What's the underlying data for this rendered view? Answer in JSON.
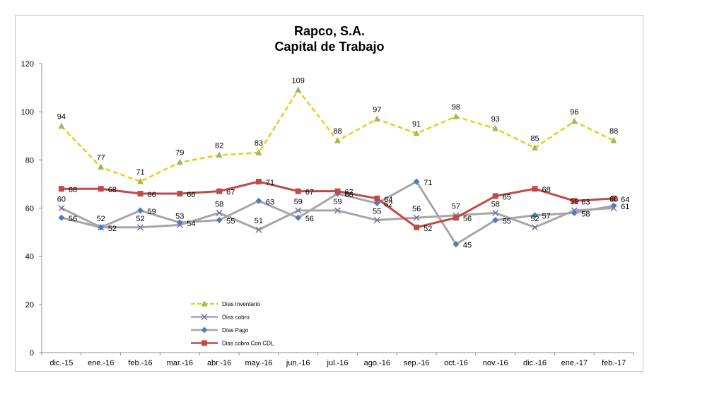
{
  "chart_data": {
    "type": "line",
    "title": [
      "Rapco, S.A.",
      "Capital de Trabajo"
    ],
    "categories": [
      "dic.-15",
      "ene.-16",
      "feb.-16",
      "mar.-16",
      "abr.-16",
      "may.-16",
      "jun.-16",
      "jul.-16",
      "ago.-16",
      "sep.-16",
      "oct.-16",
      "nov.-16",
      "dic.-16",
      "ene.-17",
      "feb.-17"
    ],
    "ylim": [
      0,
      120
    ],
    "yticks": [
      0,
      20,
      40,
      60,
      80,
      100,
      120
    ],
    "ytick_labels": [
      "0",
      "20",
      "40",
      "60",
      "80",
      "100",
      "120"
    ],
    "grid": false,
    "legend_position": "bottom-left inside plot",
    "series": [
      {
        "name": "Días Inventario",
        "color": "#f2c81e",
        "line_style": "dashed",
        "marker": "triangle",
        "marker_color": "#9bbb59",
        "values": [
          94,
          77,
          71,
          79,
          82,
          83,
          109,
          88,
          97,
          91,
          98,
          93,
          85,
          96,
          88
        ],
        "labels": [
          "94",
          "77",
          "71",
          "79",
          "82",
          "83",
          "109",
          "88",
          "97",
          "91",
          "98",
          "93",
          "85",
          "96",
          "88"
        ]
      },
      {
        "name": "Días cobro",
        "color": "#a6a6a6",
        "line_style": "solid",
        "marker": "x",
        "marker_color": "#7f6fa8",
        "values": [
          60,
          52,
          52,
          53,
          58,
          51,
          59,
          59,
          55,
          56,
          57,
          58,
          52,
          59,
          60
        ],
        "labels": [
          "60",
          "52",
          "52",
          "53",
          "58",
          "51",
          "59",
          "59",
          "55",
          "56",
          "57",
          "58",
          "52",
          "59",
          "60"
        ]
      },
      {
        "name": "Días Pago",
        "color": "#a6a6a6",
        "line_style": "solid",
        "marker": "diamond",
        "marker_color": "#4a7ebb",
        "values": [
          56,
          52,
          59,
          54,
          55,
          63,
          56,
          66,
          62,
          71,
          45,
          55,
          57,
          58,
          61
        ],
        "labels": [
          "56",
          "52",
          "59",
          "54",
          "55",
          "63",
          "56",
          "66",
          "62",
          "71",
          "45",
          "55",
          "57",
          "58",
          "61"
        ]
      },
      {
        "name": "Dias cobro Con CDL",
        "color": "#be4b48",
        "line_style": "solid",
        "marker": "square",
        "marker_color": "#be4b48",
        "values": [
          68,
          68,
          66,
          66,
          67,
          71,
          67,
          67,
          64,
          52,
          56,
          65,
          68,
          63,
          64
        ],
        "labels": [
          "68",
          "68",
          "66",
          "66",
          "67",
          "71",
          "67",
          "67",
          "64",
          "52",
          "56",
          "65",
          "68",
          "63",
          "64"
        ]
      }
    ]
  }
}
